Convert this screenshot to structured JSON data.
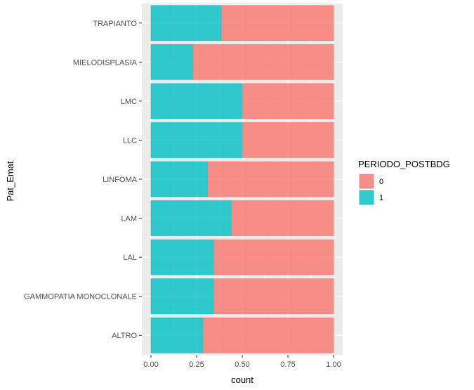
{
  "chart_data": {
    "type": "bar",
    "orientation": "horizontal",
    "stacked": true,
    "position": "fill",
    "categories": [
      "TRAPIANTO",
      "MIELODISPLASIA",
      "LMC",
      "LLC",
      "LINFOMA",
      "LAM",
      "LAL",
      "GAMMOPATIA MONOCLONALE",
      "ALTRO"
    ],
    "series": [
      {
        "name": "0",
        "color": "#F8766D",
        "values": [
          0.615,
          0.77,
          0.5,
          0.5,
          0.69,
          0.56,
          0.655,
          0.655,
          0.715
        ]
      },
      {
        "name": "1",
        "color": "#00BFC4",
        "values": [
          0.385,
          0.23,
          0.5,
          0.5,
          0.31,
          0.44,
          0.345,
          0.345,
          0.285
        ]
      }
    ],
    "xlabel": "count",
    "ylabel": "Pat_Emat",
    "xlim": [
      0,
      1
    ],
    "xticks": [
      "0.00",
      "0.25",
      "0.50",
      "0.75",
      "1.00"
    ],
    "grid": true,
    "legend": {
      "title": "PERIODO_POSTBDG",
      "position": "right"
    }
  }
}
